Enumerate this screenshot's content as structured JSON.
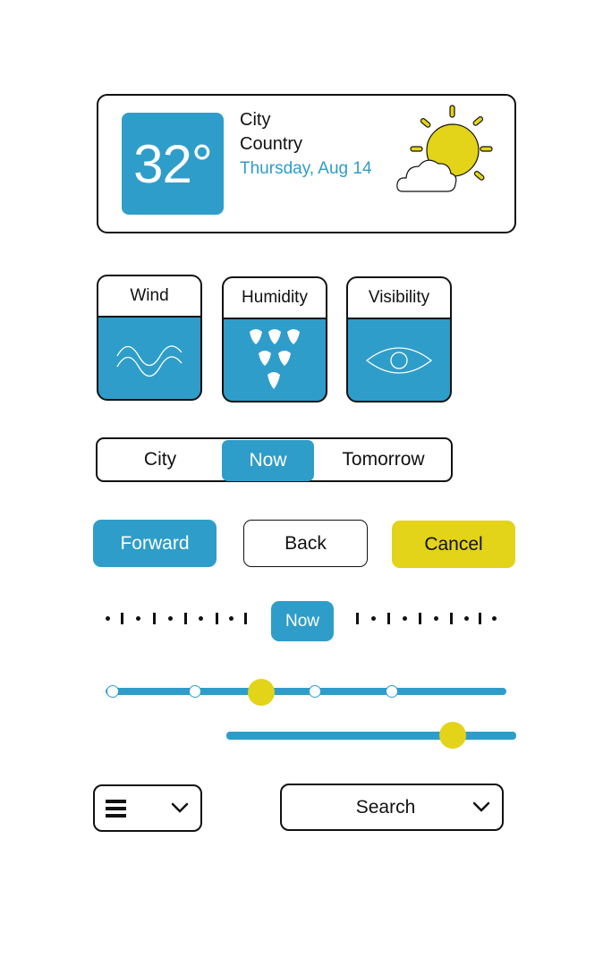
{
  "weather": {
    "temperature": "32°",
    "city": "City",
    "country": "Country",
    "date": "Thursday, Aug 14",
    "icon": "partly-sunny-icon"
  },
  "stats": {
    "wind_label": "Wind",
    "humidity_label": "Humidity",
    "visibility_label": "Visibility"
  },
  "segmented": {
    "options": [
      "City",
      "Now",
      "Tomorrow"
    ],
    "selected": "Now"
  },
  "buttons": {
    "forward": "Forward",
    "back": "Back",
    "cancel": "Cancel"
  },
  "timeline": {
    "now_label": "Now"
  },
  "sliders": {
    "step_slider_stops": 5,
    "step_slider_selected_position": 0.4,
    "range_slider_value": 0.78
  },
  "dropdowns": {
    "menu_icon": "hamburger-icon",
    "search_label": "Search"
  },
  "colors": {
    "accent_blue": "#2f9dc9",
    "accent_yellow": "#e3d319",
    "border": "#111111"
  }
}
